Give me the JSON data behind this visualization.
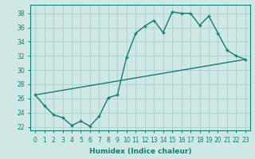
{
  "xlabel": "Humidex (Indice chaleur)",
  "background_color": "#cde8e5",
  "grid_color": "#afd4d0",
  "line_color": "#1a7a6e",
  "xlim": [
    -0.5,
    23.5
  ],
  "ylim": [
    21.5,
    39.2
  ],
  "xticks": [
    0,
    1,
    2,
    3,
    4,
    5,
    6,
    7,
    8,
    9,
    10,
    11,
    12,
    13,
    14,
    15,
    16,
    17,
    18,
    19,
    20,
    21,
    22,
    23
  ],
  "yticks": [
    22,
    24,
    26,
    28,
    30,
    32,
    34,
    36,
    38
  ],
  "curve1_x": [
    0,
    1,
    2,
    3,
    4,
    5,
    6,
    7,
    8,
    9,
    10,
    11,
    12,
    13,
    14,
    15,
    16,
    17,
    18,
    19,
    20,
    21,
    22,
    23
  ],
  "curve1_y": [
    26.5,
    25.0,
    23.7,
    23.3,
    22.2,
    22.8,
    22.1,
    23.5,
    26.1,
    26.5,
    31.8,
    35.2,
    36.2,
    37.0,
    35.3,
    38.2,
    38.0,
    38.0,
    36.3,
    37.6,
    35.2,
    32.8,
    32.0,
    31.5
  ],
  "curve2_x": [
    0,
    23
  ],
  "curve2_y": [
    26.5,
    31.5
  ]
}
